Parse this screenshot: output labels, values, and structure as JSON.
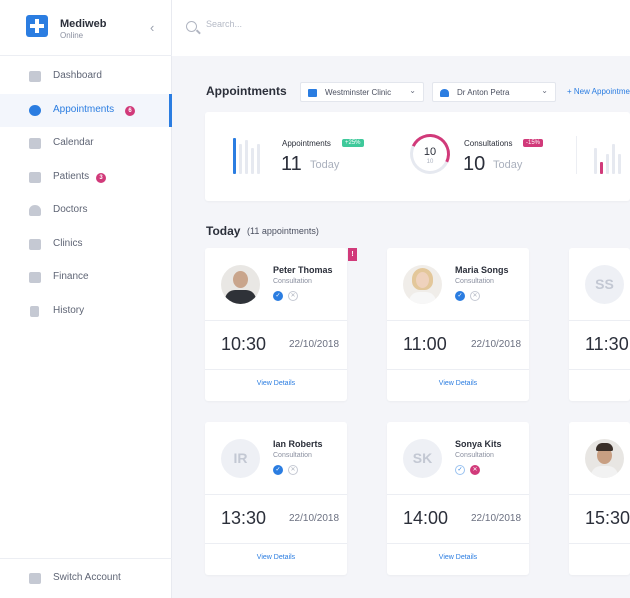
{
  "brand": {
    "name": "Mediweb",
    "status": "Online",
    "collapse": "‹"
  },
  "sidebar": {
    "items": [
      {
        "label": "Dashboard",
        "icon": "dashboard-icon"
      },
      {
        "label": "Appointments",
        "icon": "alarm-clock-icon",
        "badge": "6",
        "active": true
      },
      {
        "label": "Calendar",
        "icon": "calendar-icon"
      },
      {
        "label": "Patients",
        "icon": "patients-icon",
        "badge": "3"
      },
      {
        "label": "Doctors",
        "icon": "doctor-icon"
      },
      {
        "label": "Clinics",
        "icon": "clinic-icon"
      },
      {
        "label": "Finance",
        "icon": "finance-icon"
      },
      {
        "label": "History",
        "icon": "history-icon"
      }
    ],
    "switch_account": "Switch Account"
  },
  "search": {
    "placeholder": "Search..."
  },
  "header": {
    "title": "Appointments",
    "clinic": "Westminster Clinic",
    "doctor": "Dr Anton Petra",
    "new_link": "+ New Appointment"
  },
  "stats": {
    "appointments": {
      "label": "Appointments",
      "change": "+25%",
      "value": "11",
      "sub": "Today"
    },
    "consultations": {
      "label": "Consultations",
      "change": "-15%",
      "value": "10",
      "sub": "Today",
      "ring_value": "10",
      "ring_sub": "10"
    }
  },
  "today": {
    "title": "Today",
    "count": "(11 appointments)"
  },
  "cards": [
    {
      "name": "Peter Thomas",
      "type": "Consultation",
      "time": "10:30",
      "date": "22/10/2018",
      "details": "View Details",
      "initials": ""
    },
    {
      "name": "Maria Songs",
      "type": "Consultation",
      "time": "11:00",
      "date": "22/10/2018",
      "details": "View Details",
      "initials": ""
    },
    {
      "name": "",
      "type": "",
      "time": "11:30",
      "date": "",
      "details": "View Details",
      "initials": "SS"
    },
    {
      "name": "Ian Roberts",
      "type": "Consultation",
      "time": "13:30",
      "date": "22/10/2018",
      "details": "View Details",
      "initials": "IR"
    },
    {
      "name": "Sonya Kits",
      "type": "Consultation",
      "time": "14:00",
      "date": "22/10/2018",
      "details": "View Details",
      "initials": "SK"
    },
    {
      "name": "",
      "type": "",
      "time": "15:30",
      "date": "",
      "details": "View Details",
      "initials": ""
    }
  ],
  "flag": "!",
  "colors": {
    "accent": "#2b7de1",
    "alert": "#d13a7a",
    "positive": "#3fc99b"
  }
}
